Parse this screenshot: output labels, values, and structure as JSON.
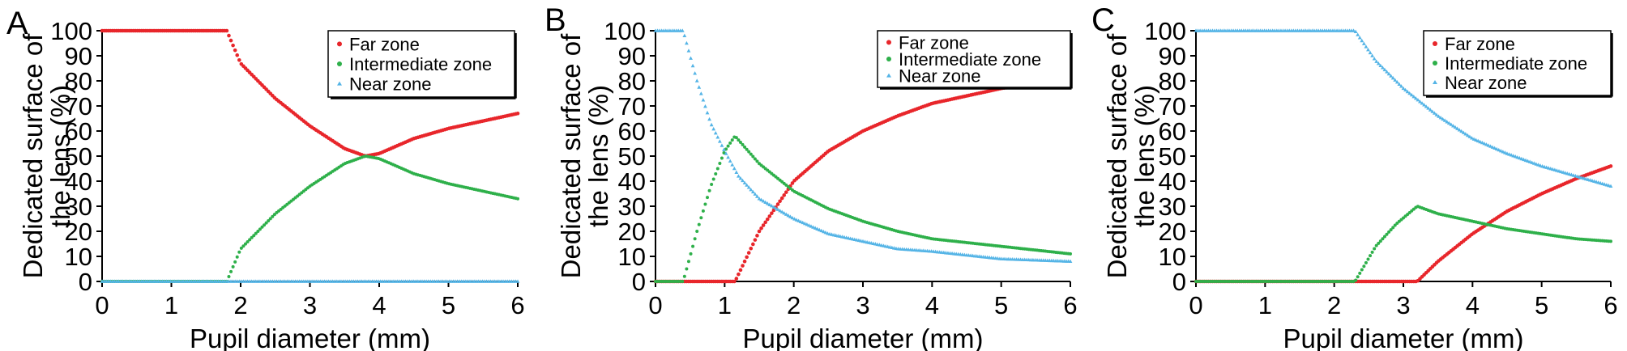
{
  "panels": [
    {
      "letter": "A",
      "xlabel": "Pupil diameter (mm)",
      "ylabel": [
        "Dedicated surface of",
        "the lens (%)"
      ],
      "xticks": [
        "0",
        "1",
        "2",
        "3",
        "4",
        "5",
        "6"
      ],
      "yticks": [
        "0",
        "10",
        "20",
        "30",
        "40",
        "50",
        "60",
        "70",
        "80",
        "90",
        "100"
      ],
      "legend": [
        "Far zone",
        "Intermediate zone",
        "Near zone"
      ]
    },
    {
      "letter": "B",
      "xlabel": "Pupil diameter (mm)",
      "ylabel": [
        "Dedicated surface of",
        "the lens (%)"
      ],
      "xticks": [
        "0",
        "1",
        "2",
        "3",
        "4",
        "5",
        "6"
      ],
      "yticks": [
        "0",
        "10",
        "20",
        "30",
        "40",
        "50",
        "60",
        "70",
        "80",
        "90",
        "100"
      ],
      "legend": [
        "Far zone",
        "Intermediate zone",
        "Near zone"
      ]
    },
    {
      "letter": "C",
      "xlabel": "Pupil diameter (mm)",
      "ylabel": [
        "Dedicated surface of",
        "the lens (%)"
      ],
      "xticks": [
        "0",
        "1",
        "2",
        "3",
        "4",
        "5",
        "6"
      ],
      "yticks": [
        "0",
        "10",
        "20",
        "30",
        "40",
        "50",
        "60",
        "70",
        "80",
        "90",
        "100"
      ],
      "legend": [
        "Far zone",
        "Intermediate zone",
        "Near zone"
      ]
    }
  ],
  "colors": {
    "far": "#e8262b",
    "intermediate": "#2eb04a",
    "near": "#54b4e6"
  },
  "chart_data": [
    {
      "type": "scatter",
      "xlabel": "Pupil diameter (mm)",
      "ylabel": "Dedicated surface of the lens (%)",
      "xlim": [
        0,
        6
      ],
      "ylim": [
        0,
        100
      ],
      "legend_position": "top-right",
      "series": [
        {
          "name": "Far zone",
          "x": [
            0,
            1,
            1.8,
            2,
            2.5,
            3,
            3.5,
            3.8,
            4,
            4.5,
            5,
            5.5,
            6
          ],
          "y": [
            100,
            100,
            100,
            87,
            73,
            62,
            53,
            50,
            51,
            57,
            61,
            64,
            67
          ]
        },
        {
          "name": "Intermediate zone",
          "x": [
            0,
            1,
            1.8,
            2,
            2.5,
            3,
            3.5,
            3.8,
            4,
            4.5,
            5,
            5.5,
            6
          ],
          "y": [
            0,
            0,
            0,
            13,
            27,
            38,
            47,
            50,
            49,
            43,
            39,
            36,
            33
          ]
        },
        {
          "name": "Near zone",
          "x": [
            0,
            1,
            2,
            3,
            4,
            5,
            6
          ],
          "y": [
            0,
            0,
            0,
            0,
            0,
            0,
            0
          ]
        }
      ]
    },
    {
      "type": "scatter",
      "xlabel": "Pupil diameter (mm)",
      "ylabel": "Dedicated surface of the lens (%)",
      "xlim": [
        0,
        6
      ],
      "ylim": [
        0,
        100
      ],
      "legend_position": "top-right",
      "series": [
        {
          "name": "Far zone",
          "x": [
            0,
            1,
            1.15,
            1.5,
            2,
            2.5,
            3,
            3.5,
            4,
            4.5,
            5,
            5.5,
            6
          ],
          "y": [
            0,
            0,
            0,
            20,
            40,
            52,
            60,
            66,
            71,
            74,
            77,
            79,
            80
          ]
        },
        {
          "name": "Intermediate zone",
          "x": [
            0,
            0.4,
            0.6,
            0.8,
            1,
            1.15,
            1.5,
            2,
            2.5,
            3,
            3.5,
            4,
            5,
            6
          ],
          "y": [
            0,
            0,
            20,
            38,
            52,
            58,
            47,
            36,
            29,
            24,
            20,
            17,
            14,
            11
          ]
        },
        {
          "name": "Near zone",
          "x": [
            0,
            0.4,
            0.6,
            0.8,
            1,
            1.2,
            1.5,
            2,
            2.5,
            3,
            3.5,
            4,
            5,
            6
          ],
          "y": [
            100,
            100,
            80,
            63,
            52,
            42,
            33,
            25,
            19,
            16,
            13,
            12,
            9,
            8
          ]
        }
      ]
    },
    {
      "type": "scatter",
      "xlabel": "Pupil diameter (mm)",
      "ylabel": "Dedicated surface of the lens (%)",
      "xlim": [
        0,
        6
      ],
      "ylim": [
        0,
        100
      ],
      "legend_position": "top-right",
      "series": [
        {
          "name": "Far zone",
          "x": [
            0,
            1,
            2,
            3,
            3.2,
            3.5,
            4,
            4.5,
            5,
            5.5,
            6
          ],
          "y": [
            0,
            0,
            0,
            0,
            0,
            8,
            19,
            28,
            35,
            41,
            46
          ]
        },
        {
          "name": "Intermediate zone",
          "x": [
            0,
            1,
            2,
            2.3,
            2.6,
            2.9,
            3.2,
            3.5,
            4,
            4.5,
            5,
            5.5,
            6
          ],
          "y": [
            0,
            0,
            0,
            0,
            14,
            23,
            30,
            27,
            24,
            21,
            19,
            17,
            16
          ]
        },
        {
          "name": "Near zone",
          "x": [
            0,
            1,
            2,
            2.3,
            2.6,
            3,
            3.5,
            4,
            4.5,
            5,
            5.5,
            6
          ],
          "y": [
            100,
            100,
            100,
            100,
            88,
            77,
            66,
            57,
            51,
            46,
            42,
            38
          ]
        }
      ]
    }
  ]
}
